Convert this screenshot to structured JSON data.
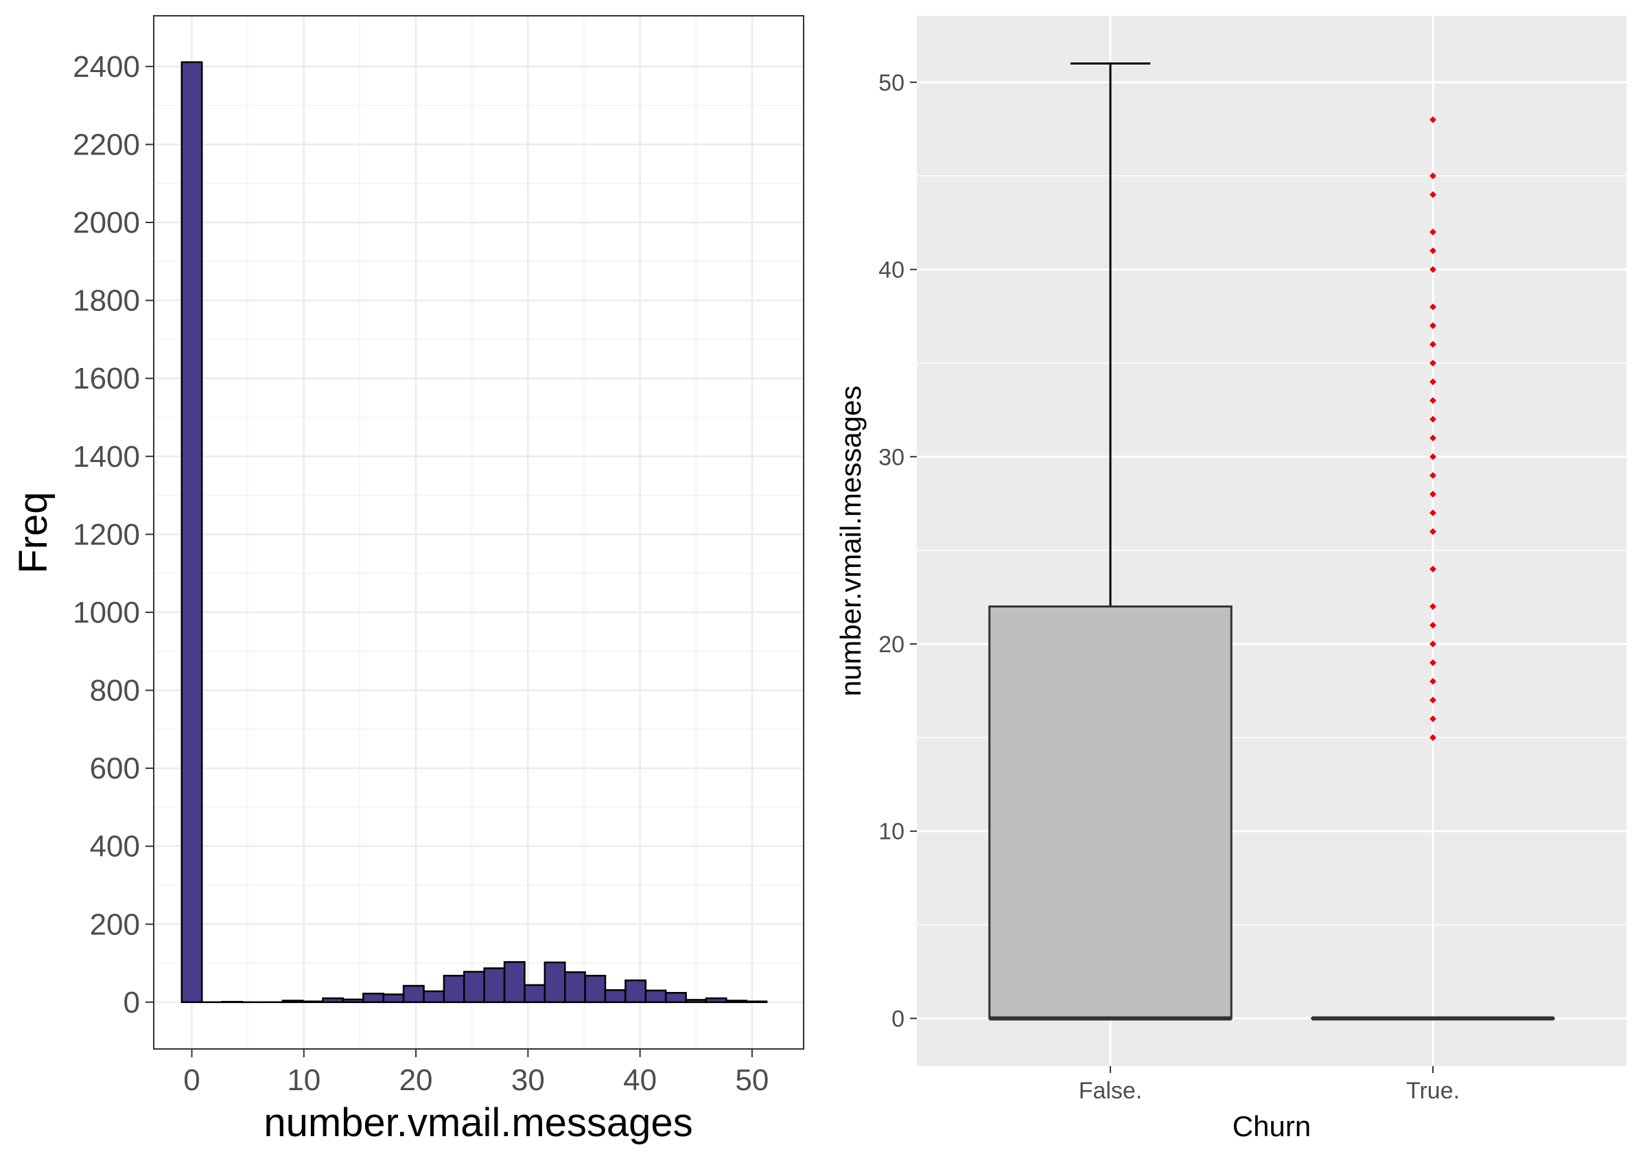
{
  "chart_data": [
    {
      "type": "bar",
      "subtype": "histogram",
      "xlabel": "number.vmail.messages",
      "ylabel": "Freq",
      "xlim": [
        -3.4,
        54.6
      ],
      "ylim": [
        -120,
        2530
      ],
      "x_ticks": [
        0,
        10,
        20,
        30,
        40,
        50
      ],
      "y_ticks": [
        0,
        200,
        400,
        600,
        800,
        1000,
        1200,
        1400,
        1600,
        1800,
        2000,
        2200,
        2400
      ],
      "bin_width": 1.8,
      "bins": [
        {
          "x": 0.0,
          "count": 2411
        },
        {
          "x": 1.8,
          "count": 0
        },
        {
          "x": 3.6,
          "count": 1
        },
        {
          "x": 5.4,
          "count": 0
        },
        {
          "x": 7.2,
          "count": 0
        },
        {
          "x": 9.0,
          "count": 4
        },
        {
          "x": 10.8,
          "count": 2
        },
        {
          "x": 12.6,
          "count": 10
        },
        {
          "x": 14.4,
          "count": 7
        },
        {
          "x": 16.2,
          "count": 22
        },
        {
          "x": 18.0,
          "count": 20
        },
        {
          "x": 19.8,
          "count": 42
        },
        {
          "x": 21.6,
          "count": 28
        },
        {
          "x": 23.4,
          "count": 68
        },
        {
          "x": 25.2,
          "count": 78
        },
        {
          "x": 27.0,
          "count": 87
        },
        {
          "x": 28.8,
          "count": 103
        },
        {
          "x": 30.6,
          "count": 44
        },
        {
          "x": 32.4,
          "count": 102
        },
        {
          "x": 34.2,
          "count": 77
        },
        {
          "x": 36.0,
          "count": 68
        },
        {
          "x": 37.8,
          "count": 31
        },
        {
          "x": 39.6,
          "count": 56
        },
        {
          "x": 41.4,
          "count": 30
        },
        {
          "x": 43.2,
          "count": 24
        },
        {
          "x": 45.0,
          "count": 6
        },
        {
          "x": 46.8,
          "count": 10
        },
        {
          "x": 48.6,
          "count": 4
        },
        {
          "x": 50.4,
          "count": 2
        }
      ],
      "colors": {
        "fill": "#483D8B",
        "border": "#000000"
      },
      "grid": true,
      "theme": "bw"
    },
    {
      "type": "boxplot",
      "xlabel": "Churn",
      "ylabel": "number.vmail.messages",
      "categories": [
        "False.",
        "True."
      ],
      "ylim": [
        -2.55,
        53.55
      ],
      "y_ticks": [
        0,
        10,
        20,
        30,
        40,
        50
      ],
      "boxes": [
        {
          "category": "False.",
          "min": 0,
          "q1": 0,
          "median": 0,
          "q3": 22,
          "max": 51,
          "outliers": []
        },
        {
          "category": "True.",
          "min": 0,
          "q1": 0,
          "median": 0,
          "q3": 0,
          "max": 0,
          "outliers": [
            15,
            16,
            17,
            18,
            19,
            20,
            21,
            22,
            24,
            26,
            27,
            28,
            29,
            30,
            31,
            32,
            33,
            34,
            35,
            36,
            37,
            38,
            40,
            41,
            42,
            44,
            45,
            48
          ]
        }
      ],
      "colors": {
        "box_fill": "#BEBEBE",
        "box_border": "#333333",
        "outlier": "#E8000B",
        "panel_bg": "#EBEBEB",
        "grid": "#FFFFFF"
      },
      "grid": true,
      "theme": "grey"
    }
  ]
}
